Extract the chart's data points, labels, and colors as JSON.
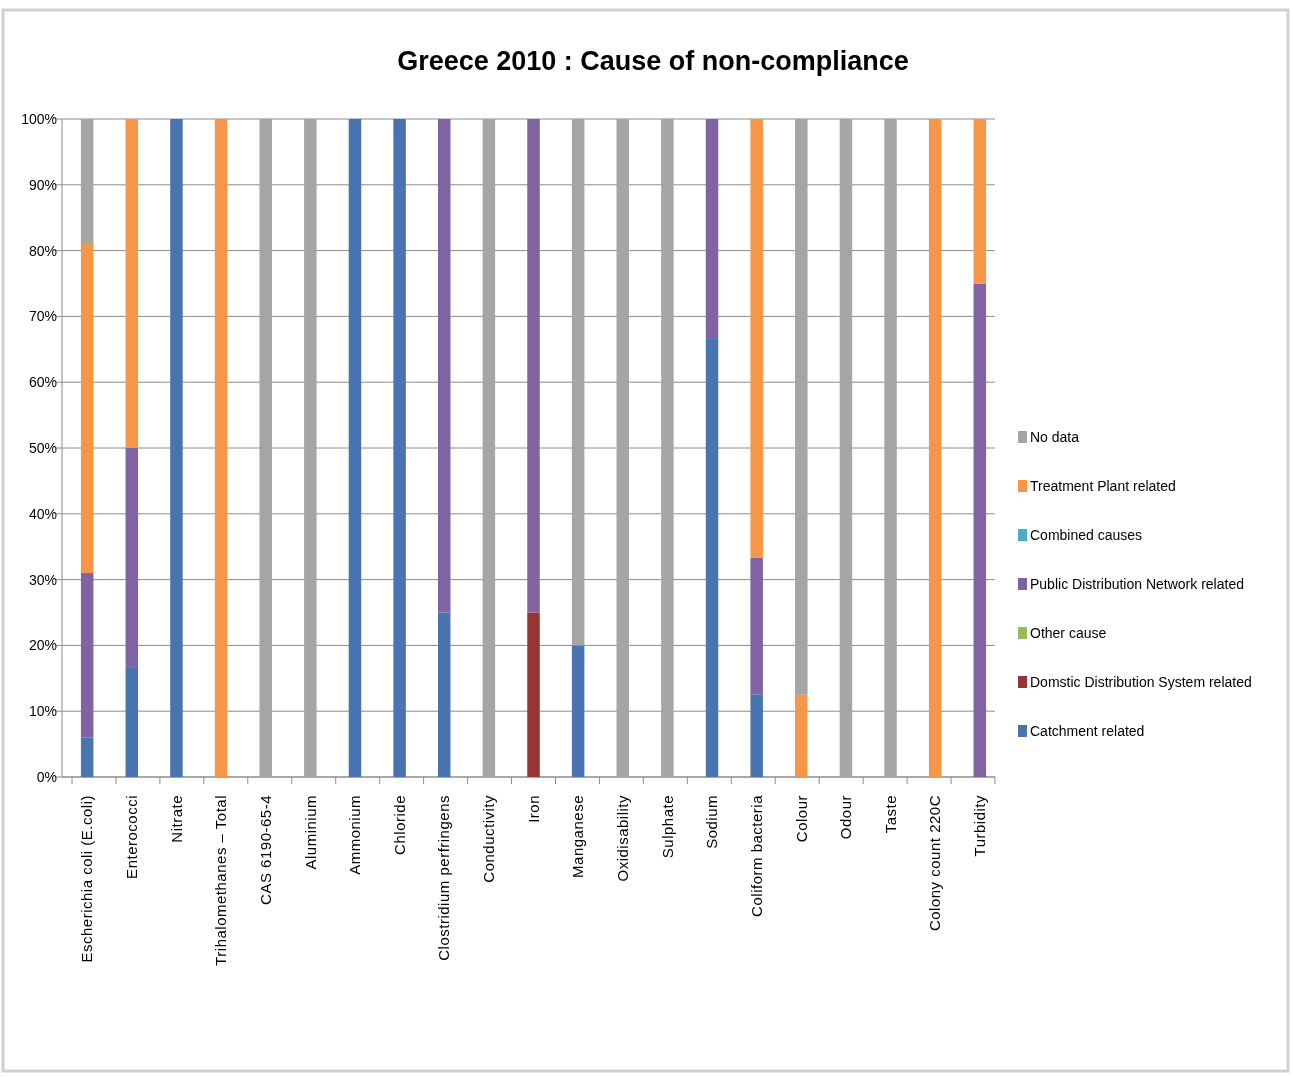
{
  "chart_data": {
    "type": "bar",
    "title": "Greece 2010 : Cause of non-compliance",
    "stacked": true,
    "grid": "y",
    "legend": "right",
    "categories": [
      "Escherichia coli (E.coli)",
      "Enterococci",
      "Nitrate",
      "Trihalomethanes – Total",
      "CAS 6190-65-4",
      "Aluminium",
      "Ammonium",
      "Chloride",
      "Clostridium perfringens",
      "Conductivity",
      "Iron",
      "Manganese",
      "Oxidisability",
      "Sulphate",
      "Sodium",
      "Coliform bacteria",
      "Colour",
      "Odour",
      "Taste",
      "Colony count 220C",
      "Turbidity"
    ],
    "ylim": [
      0,
      100
    ],
    "yticks": [
      {
        "value": 0,
        "label": "0%"
      },
      {
        "value": 10,
        "label": "10%"
      },
      {
        "value": 20,
        "label": "20%"
      },
      {
        "value": 30,
        "label": "30%"
      },
      {
        "value": 40,
        "label": "40%"
      },
      {
        "value": 50,
        "label": "50%"
      },
      {
        "value": 60,
        "label": "60%"
      },
      {
        "value": 70,
        "label": "70%"
      },
      {
        "value": 80,
        "label": "80%"
      },
      {
        "value": 90,
        "label": "90%"
      },
      {
        "value": 100,
        "label": "100%"
      }
    ],
    "series": [
      {
        "name": "Catchment related",
        "color": "#4a74b0",
        "values": [
          6,
          16.7,
          100,
          0,
          0,
          0,
          100,
          100,
          25,
          0,
          0,
          20,
          0,
          0,
          66.7,
          12.5,
          0,
          0,
          0,
          0,
          0
        ]
      },
      {
        "name": "Domstic Distribution  System related",
        "color": "#973535",
        "values": [
          0,
          0,
          0,
          0,
          0,
          0,
          0,
          0,
          0,
          0,
          25,
          0,
          0,
          0,
          0,
          0,
          0,
          0,
          0,
          0,
          0
        ]
      },
      {
        "name": "Other cause",
        "color": "#9bbb59",
        "values": [
          0,
          0,
          0,
          0,
          0,
          0,
          0,
          0,
          0,
          0,
          0,
          0,
          0,
          0,
          0,
          0,
          0,
          0,
          0,
          0,
          0
        ]
      },
      {
        "name": "Public Distribution Network related",
        "color": "#8064a2",
        "values": [
          25,
          33.3,
          0,
          0,
          0,
          0,
          0,
          0,
          75,
          0,
          75,
          0,
          0,
          0,
          33.3,
          20.8,
          0,
          0,
          0,
          0,
          75
        ]
      },
      {
        "name": "Combined causes",
        "color": "#4bacc6",
        "values": [
          0,
          0,
          0,
          0,
          0,
          0,
          0,
          0,
          0,
          0,
          0,
          0,
          0,
          0,
          0,
          0,
          0,
          0,
          0,
          0,
          0
        ]
      },
      {
        "name": "Treatment Plant related",
        "color": "#f79646",
        "values": [
          50,
          50,
          0,
          100,
          0,
          0,
          0,
          0,
          0,
          0,
          0,
          0,
          0,
          0,
          0,
          66.7,
          12.5,
          0,
          0,
          100,
          25
        ]
      },
      {
        "name": "No data",
        "color": "#a5a5a5",
        "values": [
          19,
          0,
          0,
          0,
          100,
          100,
          0,
          0,
          0,
          100,
          0,
          80,
          100,
          100,
          0,
          0,
          87.5,
          100,
          100,
          0,
          0
        ]
      }
    ]
  }
}
